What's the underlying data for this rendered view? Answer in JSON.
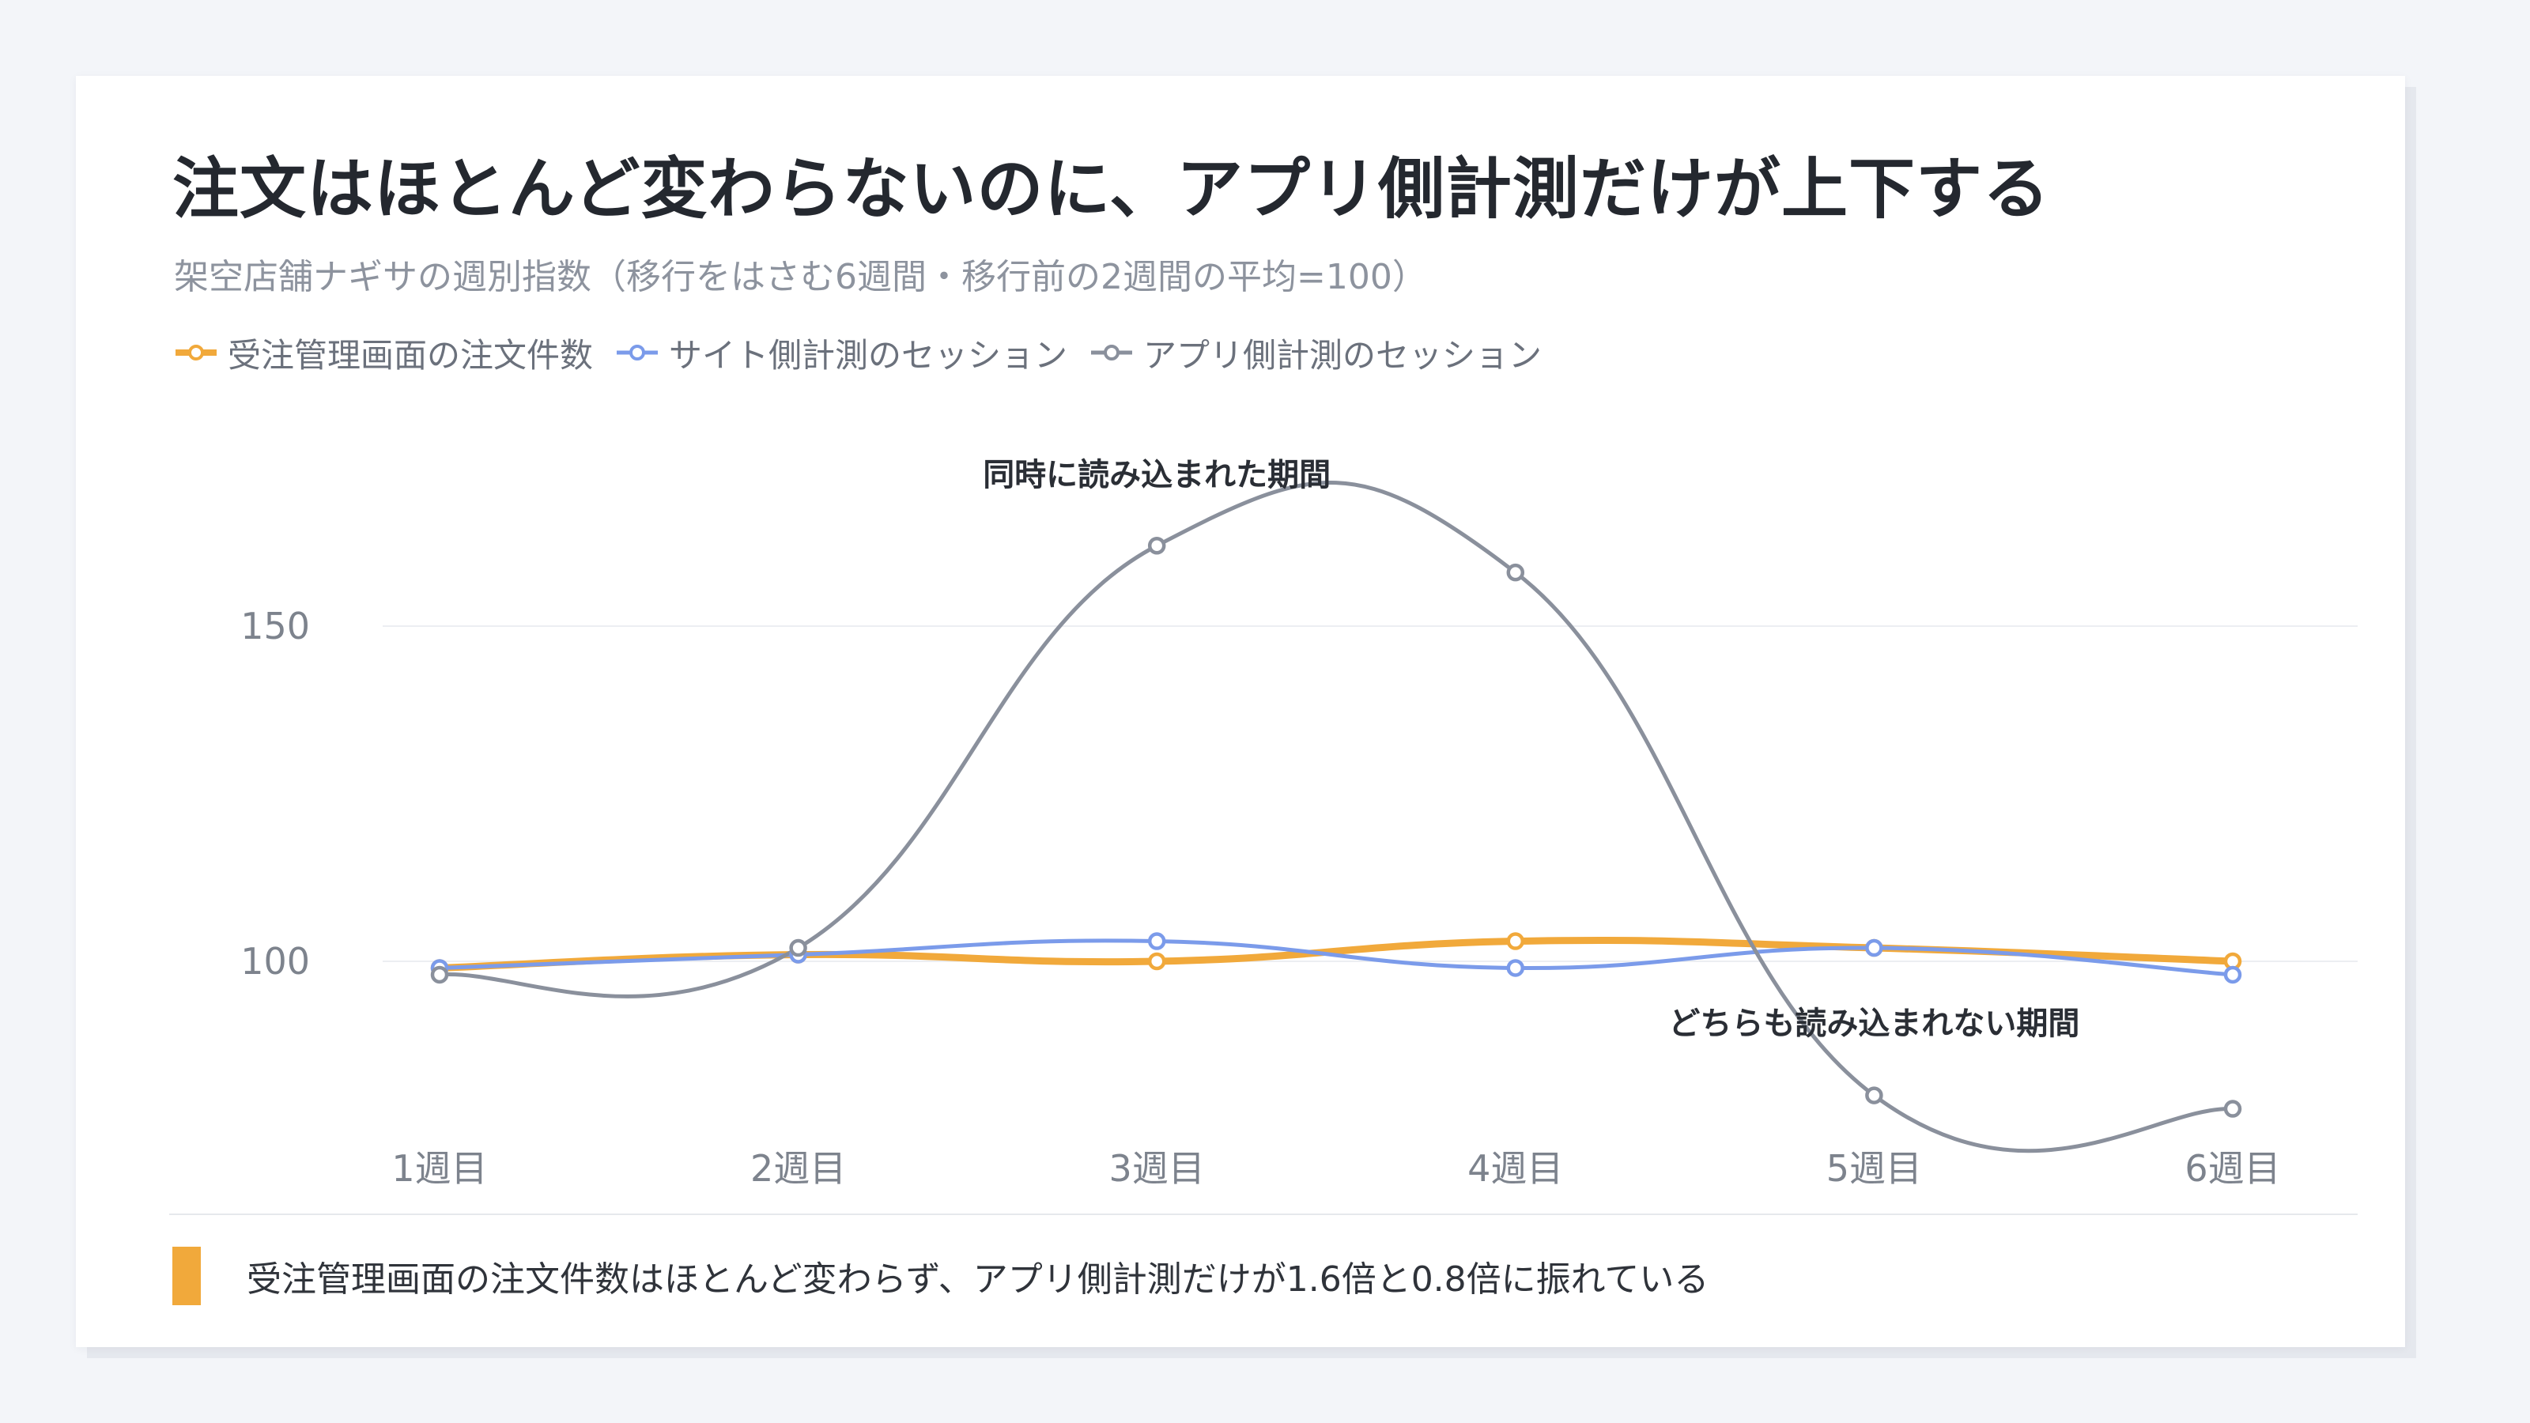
{
  "title": "注文はほとんど変わらないのに、アプリ側計測だけが上下する",
  "subtitle": "架空店舗ナギサの週別指数（移行をはさむ6週間・移行前の2週間の平均=100）",
  "footnote": "受注管理画面の注文件数はほとんど変わらず、アプリ側計測だけが1.6倍と0.8倍に振れている",
  "chart_data": {
    "type": "line",
    "x": [
      "1週目",
      "2週目",
      "3週目",
      "4週目",
      "5週目",
      "6週目"
    ],
    "ylim": [
      75,
      170
    ],
    "yticks": [
      100,
      150
    ],
    "grid": true,
    "legend": "top-left",
    "series": [
      {
        "name": "受注管理画面の注文件数",
        "color": "#f1a93b",
        "values": [
          99,
          101,
          100,
          103,
          102,
          100
        ]
      },
      {
        "name": "サイト側計測のセッション",
        "color": "#7b9bea",
        "values": [
          99,
          101,
          103,
          99,
          102,
          98
        ]
      },
      {
        "name": "アプリ側計測のセッション",
        "color": "#8a909c",
        "values": [
          98,
          102,
          162,
          158,
          80,
          78
        ]
      }
    ],
    "annotations": [
      {
        "text": "同時に読み込まれた期間",
        "x": "3週目"
      },
      {
        "text": "どちらも読み込まれない期間",
        "x": "5週目"
      }
    ]
  }
}
